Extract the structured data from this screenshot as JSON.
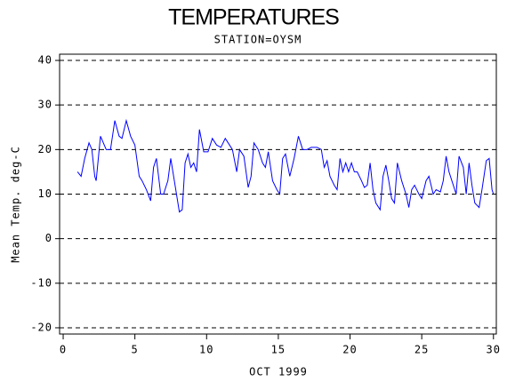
{
  "chart_data": {
    "type": "line",
    "title": "TEMPERATURES",
    "subtitle": "STATION=OYSM",
    "y_label": "Mean Temp. deg-C",
    "x_label": "OCT 1999",
    "color": "#0000ff",
    "x": [
      1.0,
      1.25,
      1.5,
      1.8,
      2.0,
      2.2,
      2.3,
      2.6,
      3.0,
      3.3,
      3.6,
      3.9,
      4.1,
      4.4,
      4.7,
      5.0,
      5.3,
      5.5,
      5.8,
      6.1,
      6.3,
      6.5,
      6.8,
      7.0,
      7.3,
      7.5,
      7.8,
      8.1,
      8.3,
      8.5,
      8.7,
      8.9,
      9.1,
      9.3,
      9.5,
      9.8,
      10.1,
      10.4,
      10.7,
      11.0,
      11.3,
      11.6,
      11.8,
      12.1,
      12.3,
      12.6,
      12.9,
      13.1,
      13.3,
      13.6,
      13.9,
      14.1,
      14.3,
      14.6,
      14.9,
      15.1,
      15.3,
      15.5,
      15.8,
      16.1,
      16.4,
      16.7,
      17.0,
      17.3,
      17.7,
      18.0,
      18.2,
      18.4,
      18.6,
      18.9,
      19.1,
      19.3,
      19.5,
      19.7,
      19.9,
      20.1,
      20.3,
      20.5,
      20.8,
      21.0,
      21.2,
      21.4,
      21.6,
      21.8,
      22.1,
      22.3,
      22.5,
      22.7,
      22.9,
      23.1,
      23.3,
      23.6,
      23.9,
      24.1,
      24.3,
      24.5,
      24.8,
      25.0,
      25.3,
      25.5,
      25.8,
      26.0,
      26.3,
      26.5,
      26.7,
      26.9,
      27.1,
      27.4,
      27.6,
      27.9,
      28.1,
      28.3,
      28.5,
      28.7,
      29.0,
      29.2,
      29.5,
      29.7,
      29.9,
      30.0
    ],
    "values": [
      15,
      14,
      18,
      21.5,
      20,
      14,
      13,
      23,
      20,
      20,
      26.5,
      23,
      22.5,
      26.5,
      23,
      21,
      14,
      13,
      11,
      8.5,
      16,
      18,
      10,
      10,
      13,
      18,
      12,
      6,
      6.5,
      17,
      19,
      16,
      17,
      15,
      24.5,
      19.5,
      19.5,
      22.5,
      21,
      20.5,
      22.5,
      21,
      20,
      15,
      20,
      18.5,
      11.5,
      14,
      21.5,
      20,
      17,
      16,
      19.5,
      13,
      11,
      10,
      18,
      19,
      14,
      18,
      23,
      20,
      20,
      20.5,
      20.5,
      20,
      16,
      17.5,
      14,
      12,
      11,
      18,
      15,
      17,
      15,
      17,
      15,
      15,
      13,
      11.5,
      12,
      17,
      11,
      8,
      6.5,
      14,
      16.5,
      13,
      9,
      8,
      17,
      13,
      10,
      7,
      11,
      12,
      10,
      9,
      13,
      14,
      10,
      11,
      10.5,
      13,
      18.5,
      15,
      13,
      10,
      18.5,
      16,
      10,
      17,
      12,
      8,
      7,
      11,
      17.5,
      18,
      11,
      10
    ],
    "xlim": [
      -0.25,
      30.2
    ],
    "ylim": [
      -21.4,
      41.4
    ],
    "xticks": [
      0,
      5,
      10,
      15,
      20,
      25,
      30
    ],
    "yticks": [
      -20,
      -10,
      0,
      10,
      20,
      30,
      40
    ],
    "grid": true
  }
}
